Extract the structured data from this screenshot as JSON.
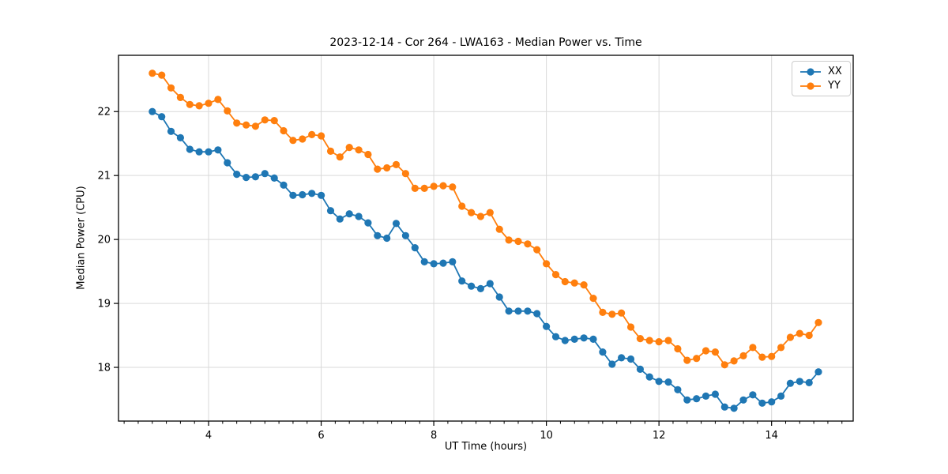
{
  "figure": {
    "background": "#ffffff",
    "grid_color": "#d9d9d9",
    "spine_color": "#000000",
    "tick_color": "#000000",
    "text_color": "#000000"
  },
  "legend": {
    "entries": [
      {
        "label": "XX",
        "color": "#1f77b4"
      },
      {
        "label": "YY",
        "color": "#ff7f0e"
      }
    ]
  },
  "chart_data": {
    "type": "line",
    "title": "2023-12-14 - Cor 264 - LWA163 - Median Power vs. Time",
    "xlabel": "UT Time (hours)",
    "ylabel": "Median Power (CPU)",
    "xlim": [
      2.4,
      15.45
    ],
    "ylim": [
      17.16,
      22.88
    ],
    "xticks": [
      4,
      6,
      8,
      10,
      12,
      14
    ],
    "yticks": [
      18,
      19,
      20,
      21,
      22
    ],
    "x_minor_tick_step": 0.25,
    "grid": true,
    "legend_position": "upper right",
    "marker": "o",
    "x": [
      3.0,
      3.167,
      3.333,
      3.5,
      3.667,
      3.833,
      4.0,
      4.167,
      4.333,
      4.5,
      4.667,
      4.833,
      5.0,
      5.167,
      5.333,
      5.5,
      5.667,
      5.833,
      6.0,
      6.167,
      6.333,
      6.5,
      6.667,
      6.833,
      7.0,
      7.167,
      7.333,
      7.5,
      7.667,
      7.833,
      8.0,
      8.167,
      8.333,
      8.5,
      8.667,
      8.833,
      9.0,
      9.167,
      9.333,
      9.5,
      9.667,
      9.833,
      10.0,
      10.167,
      10.333,
      10.5,
      10.667,
      10.833,
      11.0,
      11.167,
      11.333,
      11.5,
      11.667,
      11.833,
      12.0,
      12.167,
      12.333,
      12.5,
      12.667,
      12.833,
      13.0,
      13.167,
      13.333,
      13.5,
      13.667,
      13.833,
      14.0,
      14.167,
      14.333,
      14.5,
      14.667,
      14.833
    ],
    "series": [
      {
        "name": "XX",
        "color": "#1f77b4",
        "values": [
          22.0,
          21.92,
          21.69,
          21.59,
          21.41,
          21.37,
          21.37,
          21.4,
          21.2,
          21.02,
          20.97,
          20.98,
          21.03,
          20.96,
          20.85,
          20.69,
          20.7,
          20.72,
          20.69,
          20.45,
          20.32,
          20.4,
          20.36,
          20.26,
          20.06,
          20.02,
          20.25,
          20.06,
          19.87,
          19.65,
          19.62,
          19.63,
          19.65,
          19.35,
          19.27,
          19.23,
          19.31,
          19.1,
          18.88,
          18.88,
          18.88,
          18.84,
          18.64,
          18.48,
          18.42,
          18.44,
          18.46,
          18.44,
          18.24,
          18.05,
          18.15,
          18.13,
          17.97,
          17.85,
          17.78,
          17.77,
          17.65,
          17.49,
          17.51,
          17.55,
          17.58,
          17.38,
          17.36,
          17.49,
          17.57,
          17.44,
          17.46,
          17.55,
          17.75,
          17.78,
          17.76,
          17.93
        ]
      },
      {
        "name": "YY",
        "color": "#ff7f0e",
        "values": [
          22.6,
          22.57,
          22.37,
          22.22,
          22.11,
          22.09,
          22.13,
          22.19,
          22.01,
          21.82,
          21.79,
          21.77,
          21.87,
          21.86,
          21.7,
          21.55,
          21.57,
          21.64,
          21.62,
          21.38,
          21.29,
          21.44,
          21.4,
          21.33,
          21.1,
          21.12,
          21.17,
          21.03,
          20.8,
          20.8,
          20.83,
          20.84,
          20.82,
          20.52,
          20.42,
          20.36,
          20.42,
          20.16,
          19.99,
          19.97,
          19.93,
          19.84,
          19.62,
          19.45,
          19.34,
          19.32,
          19.29,
          19.08,
          18.86,
          18.83,
          18.85,
          18.63,
          18.45,
          18.42,
          18.4,
          18.42,
          18.29,
          18.11,
          18.14,
          18.26,
          18.24,
          18.04,
          18.1,
          18.18,
          18.31,
          18.16,
          18.17,
          18.31,
          18.47,
          18.53,
          18.5,
          18.7
        ]
      }
    ]
  }
}
